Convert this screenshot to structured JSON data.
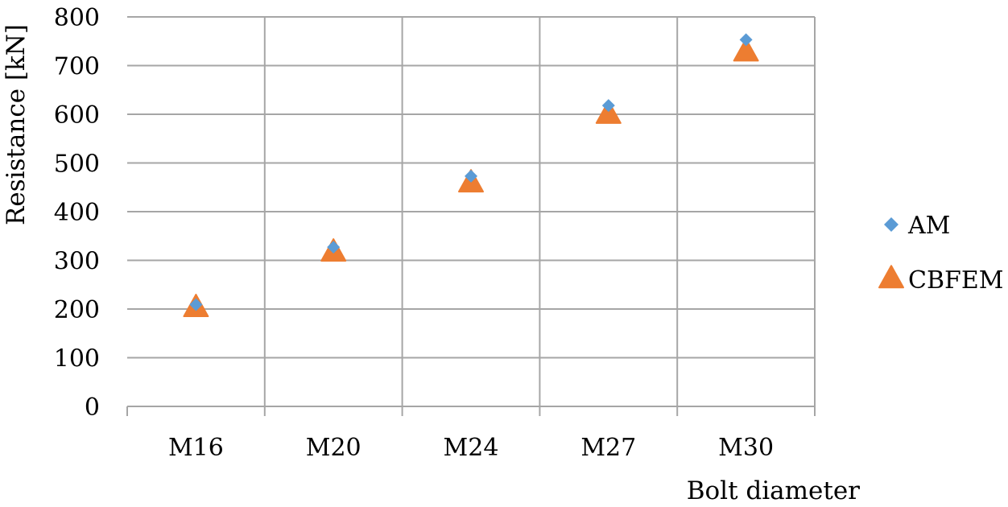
{
  "chart_data": {
    "type": "scatter",
    "categories": [
      "M16",
      "M20",
      "M24",
      "M27",
      "M30"
    ],
    "series": [
      {
        "name": "AM",
        "values": [
          209,
          327,
          473,
          618,
          753
        ],
        "color": "#5b9bd5",
        "marker": "diamond"
      },
      {
        "name": "CBFEM",
        "values": [
          202,
          316,
          458,
          599,
          727
        ],
        "color": "#ed7d31",
        "marker": "triangle"
      }
    ],
    "title": "",
    "xlabel": "Bolt diameter",
    "ylabel": "Resistance [kN]",
    "ylim": [
      0,
      800
    ],
    "yticks": [
      0,
      100,
      200,
      300,
      400,
      500,
      600,
      700,
      800
    ],
    "grid": true,
    "legend_position": "right"
  }
}
